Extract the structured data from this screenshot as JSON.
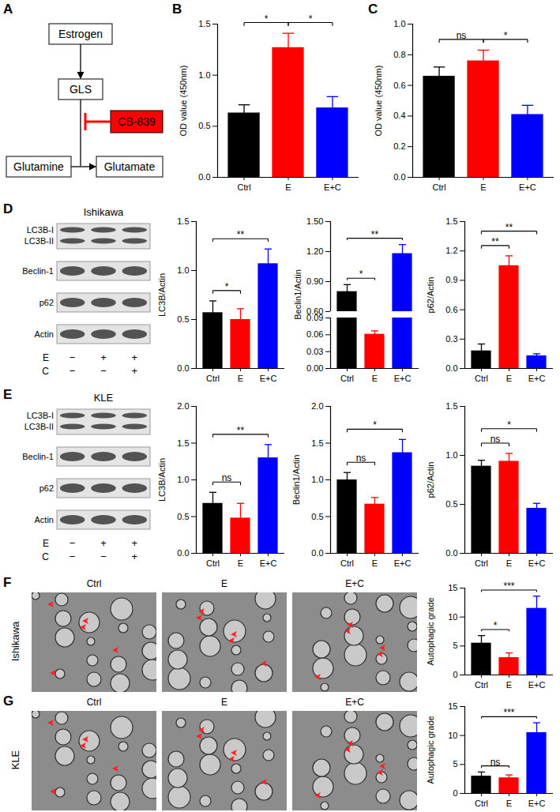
{
  "figure": {
    "diagram": {
      "panel": "A",
      "nodes": {
        "hormone": "Estrogen",
        "enzyme": "GLS",
        "substrate": "Glutamine",
        "product": "Glutamate",
        "inhibitor": "CB-839"
      }
    },
    "blots": [
      {
        "panel": "D",
        "cell_line": "Ishikawa",
        "bands": [
          "LC3B-I",
          "LC3B-II",
          "Beclin-1",
          "p62",
          "Actin"
        ],
        "treatments": [
          {
            "name": "E",
            "signs": [
              "−",
              "+",
              "+"
            ]
          },
          {
            "name": "C",
            "signs": [
              "−",
              "−",
              "+"
            ]
          }
        ]
      },
      {
        "panel": "E",
        "cell_line": "KLE",
        "bands": [
          "LC3B-I",
          "LC3B-II",
          "Beclin-1",
          "p62",
          "Actin"
        ],
        "treatments": [
          {
            "name": "E",
            "signs": [
              "−",
              "+",
              "+"
            ]
          },
          {
            "name": "C",
            "signs": [
              "−",
              "−",
              "+"
            ]
          }
        ]
      }
    ],
    "micrographs": [
      {
        "panel": "F",
        "cell_line": "Ishikawa",
        "conditions": [
          "Ctrl",
          "E",
          "E+C"
        ]
      },
      {
        "panel": "G",
        "cell_line": "KLE",
        "conditions": [
          "Ctrl",
          "E",
          "E+C"
        ]
      }
    ]
  },
  "chart_data": [
    {
      "panel": "B",
      "type": "bar",
      "ylabel": "OD value (450nm)",
      "categories": [
        "Ctrl",
        "E",
        "E+C"
      ],
      "values": [
        0.63,
        1.27,
        0.68
      ],
      "errors": [
        0.08,
        0.14,
        0.11
      ],
      "colors": [
        "#000000",
        "#ff0000",
        "#0000ff"
      ],
      "ylim": [
        0,
        1.5
      ],
      "yticks": [
        {
          "value": 0,
          "label": "0.0"
        },
        0.5,
        {
          "value": 1,
          "label": "1.0"
        },
        1.5
      ],
      "annotations": [
        {
          "from": "Ctrl",
          "to": "E",
          "label": "*"
        },
        {
          "from": "E",
          "to": "E+C",
          "label": "*"
        }
      ]
    },
    {
      "panel": "C",
      "type": "bar",
      "ylabel": "OD value (450nm)",
      "categories": [
        "Ctrl",
        "E",
        "E+C"
      ],
      "values": [
        0.66,
        0.76,
        0.41
      ],
      "errors": [
        0.06,
        0.07,
        0.06
      ],
      "colors": [
        "#000000",
        "#ff0000",
        "#0000ff"
      ],
      "ylim": [
        0,
        1
      ],
      "yticks": [
        {
          "value": 0,
          "label": "0.0"
        },
        0.2,
        0.4,
        0.6,
        0.8,
        {
          "value": 1,
          "label": "1.0"
        }
      ],
      "annotations": [
        {
          "from": "Ctrl",
          "to": "E",
          "label": "ns"
        },
        {
          "from": "E",
          "to": "E+C",
          "label": "*"
        }
      ]
    },
    {
      "panel": "D",
      "type": "bar",
      "ylabel": "LC3B/Actin",
      "categories": [
        "Ctrl",
        "E",
        "E+C"
      ],
      "values": [
        0.57,
        0.5,
        1.07
      ],
      "errors": [
        0.12,
        0.11,
        0.15
      ],
      "colors": [
        "#000000",
        "#ff0000",
        "#0000ff"
      ],
      "ylim": [
        0,
        1.5
      ],
      "yticks": [
        {
          "value": 0,
          "label": "0.0"
        },
        0.5,
        {
          "value": 1,
          "label": "1.0"
        },
        1.5
      ],
      "annotations": [
        {
          "from": "Ctrl",
          "to": "E",
          "label": "*"
        },
        {
          "from": "Ctrl",
          "to": "E+C",
          "label": "**"
        }
      ]
    },
    {
      "panel": "D",
      "type": "bar",
      "ylabel": "Beclin1/Actin",
      "categories": [
        "Ctrl",
        "E",
        "E+C"
      ],
      "values": [
        0.8,
        0.061,
        1.18
      ],
      "errors": [
        0.07,
        0.006,
        0.09
      ],
      "colors": [
        "#000000",
        "#ff0000",
        "#0000ff"
      ],
      "ylim": [
        [
          0,
          0.09
        ],
        [
          0.6,
          1.5
        ]
      ],
      "yticks": [
        {
          "value": 0,
          "label": "0.00"
        },
        0.03,
        0.06,
        0.09,
        {
          "value": 0.6,
          "label": "0.60"
        },
        {
          "value": 0.9,
          "label": "0.90"
        },
        {
          "value": 1.2,
          "label": "1.20"
        },
        {
          "value": 1.5,
          "label": "1.50"
        }
      ],
      "annotations": [
        {
          "from": "Ctrl",
          "to": "E",
          "label": "*"
        },
        {
          "from": "Ctrl",
          "to": "E+C",
          "label": "**"
        }
      ]
    },
    {
      "panel": "D",
      "type": "bar",
      "ylabel": "p62/Actin",
      "categories": [
        "Ctrl",
        "E",
        "E+C"
      ],
      "values": [
        0.18,
        1.05,
        0.13
      ],
      "errors": [
        0.07,
        0.1,
        0.02
      ],
      "colors": [
        "#000000",
        "#ff0000",
        "#0000ff"
      ],
      "ylim": [
        0,
        1.5
      ],
      "yticks": [
        {
          "value": 0,
          "label": "0.0"
        },
        0.3,
        0.6,
        0.9,
        1.2,
        1.5
      ],
      "annotations": [
        {
          "from": "Ctrl",
          "to": "E",
          "label": "**"
        },
        {
          "from": "Ctrl",
          "to": "E+C",
          "label": "**"
        }
      ]
    },
    {
      "panel": "E",
      "type": "bar",
      "ylabel": "LC3B/Actin",
      "categories": [
        "Ctrl",
        "E",
        "E+C"
      ],
      "values": [
        0.68,
        0.48,
        1.3
      ],
      "errors": [
        0.15,
        0.2,
        0.18
      ],
      "colors": [
        "#000000",
        "#ff0000",
        "#0000ff"
      ],
      "ylim": [
        0,
        2
      ],
      "yticks": [
        {
          "value": 0,
          "label": "0.0"
        },
        0.5,
        {
          "value": 1,
          "label": "1.0"
        },
        1.5,
        {
          "value": 2,
          "label": "2.0"
        }
      ],
      "annotations": [
        {
          "from": "Ctrl",
          "to": "E",
          "label": "ns"
        },
        {
          "from": "Ctrl",
          "to": "E+C",
          "label": "**"
        }
      ]
    },
    {
      "panel": "E",
      "type": "bar",
      "ylabel": "Beclin1/Actin",
      "categories": [
        "Ctrl",
        "E",
        "E+C"
      ],
      "values": [
        1.0,
        0.67,
        1.37
      ],
      "errors": [
        0.1,
        0.09,
        0.18
      ],
      "colors": [
        "#000000",
        "#ff0000",
        "#0000ff"
      ],
      "ylim": [
        0,
        2
      ],
      "yticks": [
        {
          "value": 0,
          "label": "0.0"
        },
        0.5,
        {
          "value": 1,
          "label": "1.0"
        },
        1.5,
        {
          "value": 2,
          "label": "2.0"
        }
      ],
      "annotations": [
        {
          "from": "Ctrl",
          "to": "E",
          "label": "ns"
        },
        {
          "from": "Ctrl",
          "to": "E+C",
          "label": "*"
        }
      ]
    },
    {
      "panel": "E",
      "type": "bar",
      "ylabel": "p62/Actin",
      "categories": [
        "Ctrl",
        "E",
        "E+C"
      ],
      "values": [
        0.89,
        0.94,
        0.46
      ],
      "errors": [
        0.06,
        0.08,
        0.05
      ],
      "colors": [
        "#000000",
        "#ff0000",
        "#0000ff"
      ],
      "ylim": [
        0,
        1.5
      ],
      "yticks": [
        {
          "value": 0,
          "label": "0.0"
        },
        0.5,
        {
          "value": 1,
          "label": "1.0"
        },
        1.5
      ],
      "annotations": [
        {
          "from": "Ctrl",
          "to": "E",
          "label": "ns"
        },
        {
          "from": "Ctrl",
          "to": "E+C",
          "label": "*"
        }
      ]
    },
    {
      "panel": "F",
      "type": "bar",
      "ylabel": "Autophagic grade",
      "categories": [
        "Ctrl",
        "E",
        "E+C"
      ],
      "values": [
        5.5,
        3.0,
        11.5
      ],
      "errors": [
        1.3,
        0.8,
        2.1
      ],
      "colors": [
        "#000000",
        "#ff0000",
        "#0000ff"
      ],
      "ylim": [
        0,
        15
      ],
      "yticks": [
        0,
        5,
        10,
        15
      ],
      "annotations": [
        {
          "from": "Ctrl",
          "to": "E",
          "label": "*"
        },
        {
          "from": "Ctrl",
          "to": "E+C",
          "label": "***"
        }
      ]
    },
    {
      "panel": "G",
      "type": "bar",
      "ylabel": "Autophagic grade",
      "categories": [
        "Ctrl",
        "E",
        "E+C"
      ],
      "values": [
        3.0,
        2.7,
        10.5
      ],
      "errors": [
        0.7,
        0.5,
        1.7
      ],
      "colors": [
        "#000000",
        "#ff0000",
        "#0000ff"
      ],
      "ylim": [
        0,
        15
      ],
      "yticks": [
        0,
        5,
        10,
        15
      ],
      "annotations": [
        {
          "from": "Ctrl",
          "to": "E",
          "label": "ns"
        },
        {
          "from": "Ctrl",
          "to": "E+C",
          "label": "***"
        }
      ]
    }
  ]
}
